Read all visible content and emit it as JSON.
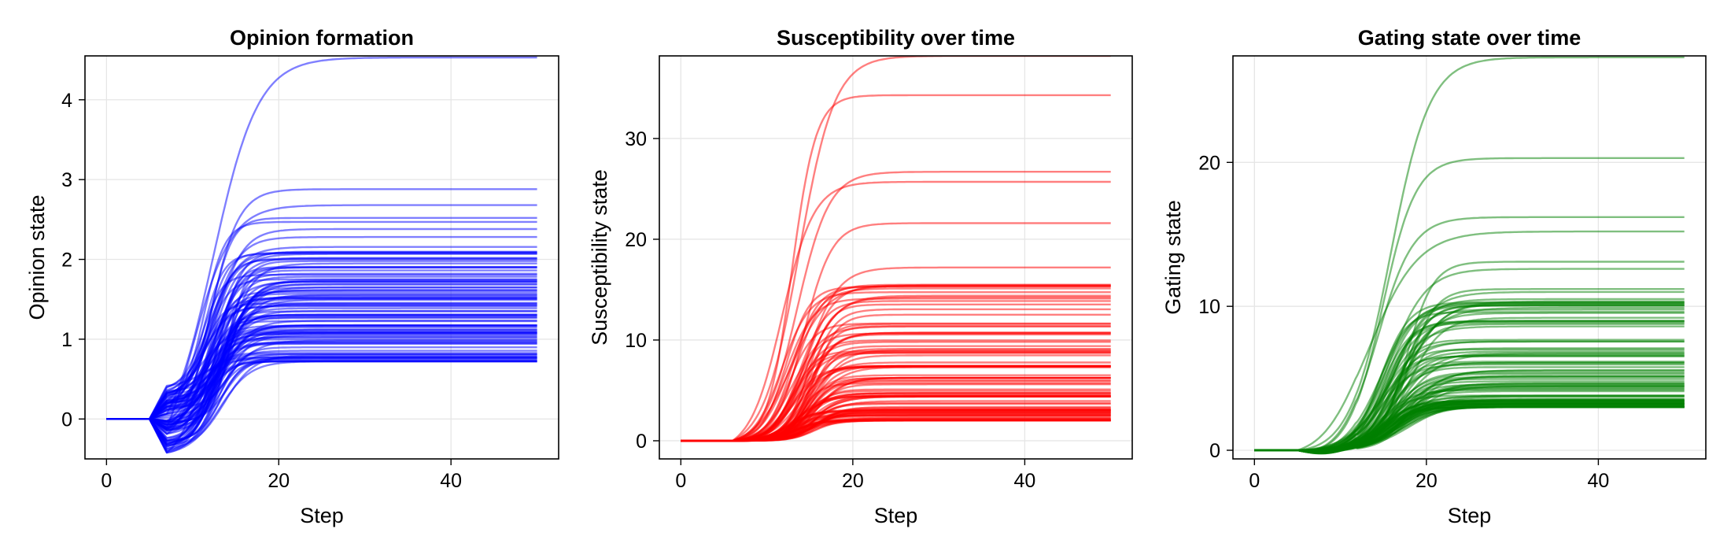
{
  "chart_data": [
    {
      "type": "line",
      "title": "Opinion formation",
      "xlabel": "Step",
      "ylabel": "Opinion state",
      "xlim": [
        -2.5,
        52.5
      ],
      "ylim": [
        -0.5,
        4.55
      ],
      "xticks": [
        0,
        20,
        40
      ],
      "yticks": [
        0,
        1,
        2,
        3,
        4
      ],
      "grid": true,
      "legend": "none",
      "color": "#0000ff",
      "series_count": 100,
      "x": [
        0,
        50
      ],
      "series_summary": {
        "x_start": 0,
        "x_end": 50,
        "flat_until_step": 5,
        "initial_value": 0,
        "early_dip_step": 7,
        "early_dip_range": [
          -0.42,
          0.42
        ],
        "min_final_value": 0.72,
        "max_final_value": 4.53,
        "top_final_values": [
          4.53,
          2.88,
          2.68,
          2.52,
          2.47,
          2.38,
          2.28
        ]
      }
    },
    {
      "type": "line",
      "title": "Susceptibility over time",
      "xlabel": "Step",
      "ylabel": "Susceptibility state",
      "xlim": [
        -2.5,
        52.5
      ],
      "ylim": [
        -1.8,
        38.2
      ],
      "xticks": [
        0,
        20,
        40
      ],
      "yticks": [
        0,
        10,
        20,
        30
      ],
      "grid": true,
      "legend": "none",
      "color": "#ff0000",
      "series_count": 100,
      "series_summary": {
        "x_start": 0,
        "x_end": 50,
        "flat_until_step": 6,
        "initial_value": 0,
        "min_final_value": 2.0,
        "max_final_value": 38.2,
        "top_final_values": [
          38.2,
          34.3,
          26.7,
          25.7,
          21.6,
          17.2,
          15.4
        ]
      }
    },
    {
      "type": "line",
      "title": "Gating state over time",
      "xlabel": "Step",
      "ylabel": "Gating state",
      "xlim": [
        -2.5,
        52.5
      ],
      "ylim": [
        -0.6,
        27.4
      ],
      "xticks": [
        0,
        20,
        40
      ],
      "yticks": [
        0,
        10,
        20
      ],
      "grid": true,
      "legend": "none",
      "color": "#008000",
      "series_count": 100,
      "series_summary": {
        "x_start": 0,
        "x_end": 50,
        "flat_until_step": 5,
        "initial_value": 0,
        "min_final_value": 3.0,
        "max_final_value": 27.3,
        "top_final_values": [
          27.3,
          20.3,
          16.2,
          15.2,
          13.1,
          12.6,
          11.2,
          11.0,
          10.5
        ]
      }
    }
  ]
}
